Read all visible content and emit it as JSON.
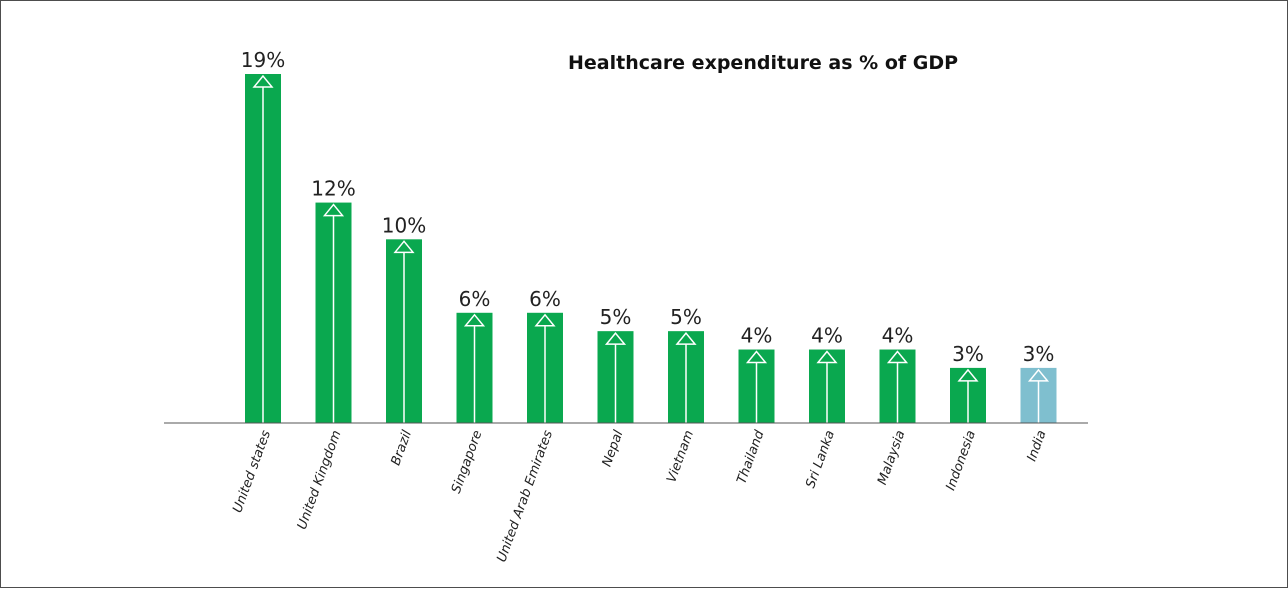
{
  "chart_data": {
    "type": "bar",
    "title": "Healthcare expenditure as % of GDP",
    "xlabel": "",
    "ylabel": "",
    "ylim": [
      0,
      19
    ],
    "grid": false,
    "legend": "none",
    "categories": [
      "United states",
      "United Kingdom",
      "Brazil",
      "Singapore",
      "United Arab Emirates",
      "Nepal",
      "Vietnam",
      "Thailand",
      "Sri Lanka",
      "Malaysia",
      "Indonesia",
      "India"
    ],
    "values": [
      19,
      12,
      10,
      6,
      6,
      5,
      5,
      4,
      4,
      4,
      3,
      3
    ],
    "value_labels": [
      "19%",
      "12%",
      "10%",
      "6%",
      "6%",
      "5%",
      "5%",
      "4%",
      "4%",
      "4%",
      "3%",
      "3%"
    ],
    "colors": {
      "default_bar": "#0aa84f",
      "highlight_bar": "#7fbfcf",
      "arrow": "#ffffff",
      "axis": "#555555"
    },
    "highlight_category": "India"
  }
}
